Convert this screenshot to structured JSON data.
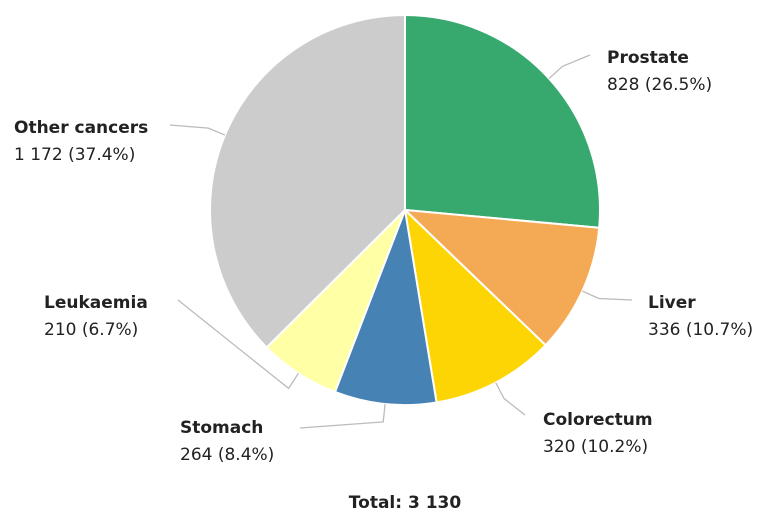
{
  "chart_data": {
    "type": "pie",
    "categories": [
      "Prostate",
      "Liver",
      "Colorectum",
      "Stomach",
      "Leukaemia",
      "Other cancers"
    ],
    "values": [
      828,
      336,
      320,
      264,
      210,
      1172
    ],
    "value_labels": [
      "828 (26.5%)",
      "336 (10.7%)",
      "320 (10.2%)",
      "264 (8.4%)",
      "210 (6.7%)",
      "1 172 (37.4%)"
    ],
    "colors": [
      "#38a96e",
      "#f4a955",
      "#fdd504",
      "#4682b4",
      "#ffffa6",
      "#cccccc"
    ],
    "footer": "Total: 3 130"
  }
}
